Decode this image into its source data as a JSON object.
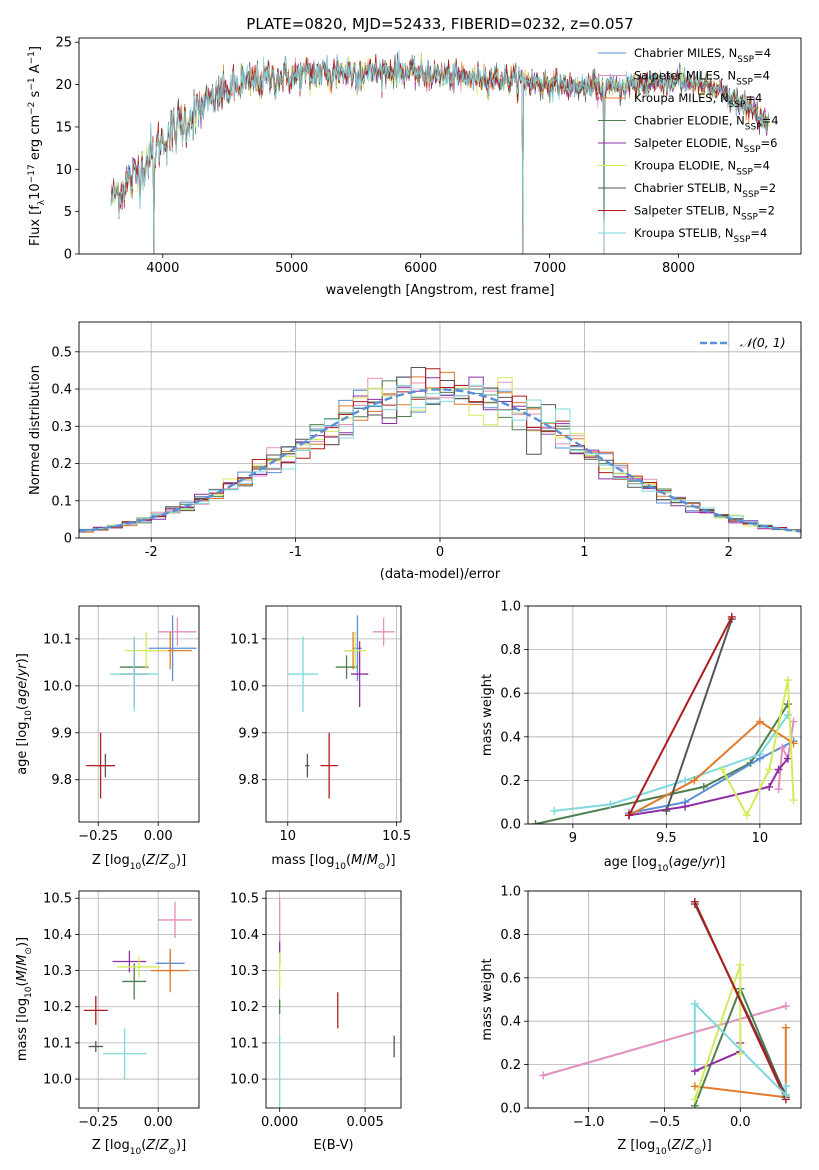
{
  "title": "PLATE=0820, MJD=52433, FIBERID=0232, z=0.057",
  "colors": {
    "Chabrier MILES": "#5b8fd6",
    "Salpeter MILES": "#e38fbf",
    "Kroupa MILES": "#e07b2e",
    "Chabrier ELODIE": "#4e7f4e",
    "Salpeter ELODIE": "#8e2fa3",
    "Kroupa ELODIE": "#d4ea5a",
    "Chabrier STELIB": "#555555",
    "Salpeter STELIB": "#b01c1c",
    "Kroupa STELIB": "#7fd9dd",
    "normal_fit": "#5b8fd6"
  },
  "chart_data": [
    {
      "type": "line",
      "title": "PLATE=0820, MJD=52433, FIBERID=0232, z=0.057",
      "xlabel": "wavelength [Angstrom, rest frame]",
      "ylabel": "Flux [f_λ 10^-17 erg cm^-2 s^-1 A^-1]",
      "xlim": [
        3350,
        8950
      ],
      "ylim": [
        0,
        25.5
      ],
      "xticks": [
        4000,
        5000,
        6000,
        7000,
        8000
      ],
      "yticks": [
        0,
        5,
        10,
        15,
        20,
        25
      ],
      "legend_position": "upper-right",
      "legend": [
        {
          "name": "Chabrier MILES",
          "sub": "SSP",
          "n": "4"
        },
        {
          "name": "Salpeter MILES",
          "sub": "SSP",
          "n": "4"
        },
        {
          "name": "Kroupa MILES",
          "sub": "SSP",
          "n": "4"
        },
        {
          "name": "Chabrier ELODIE",
          "sub": "SSP",
          "n": "4"
        },
        {
          "name": "Salpeter ELODIE",
          "sub": "SSP",
          "n": "6"
        },
        {
          "name": "Kroupa ELODIE",
          "sub": "SSP",
          "n": "4"
        },
        {
          "name": "Chabrier STELIB",
          "sub": "SSP",
          "n": "2"
        },
        {
          "name": "Salpeter STELIB",
          "sub": "SSP",
          "n": "2"
        },
        {
          "name": "Kroupa STELIB",
          "sub": "SSP",
          "n": "4"
        }
      ],
      "continuum": {
        "x": [
          3600,
          3800,
          4000,
          4200,
          4400,
          4600,
          4800,
          5000,
          5200,
          5400,
          5600,
          5800,
          6000,
          6200,
          6400,
          6600,
          6800,
          7000,
          7200,
          7400,
          7600,
          7800,
          8000,
          8200,
          8400,
          8600,
          8700
        ],
        "y": [
          6.5,
          9.5,
          13.5,
          16,
          18.5,
          20,
          20.8,
          21,
          21.3,
          21.5,
          21.5,
          21.6,
          21.3,
          21,
          20.8,
          20.7,
          20.5,
          20,
          19.7,
          19.6,
          19.8,
          20.3,
          20.5,
          19.9,
          18.5,
          16.5,
          15.8
        ]
      },
      "dips": [
        {
          "x": 3930,
          "y": 0
        },
        {
          "x": 6790,
          "y": 0
        },
        {
          "x": 7420,
          "y": 0
        }
      ]
    },
    {
      "type": "histogram",
      "xlabel": "(data-model)/error",
      "ylabel": "Normed distribution",
      "xlim": [
        -2.5,
        2.5
      ],
      "ylim": [
        0,
        0.58
      ],
      "xticks": [
        -2,
        -1,
        0,
        1,
        2
      ],
      "yticks": [
        0,
        0.1,
        0.2,
        0.3,
        0.4,
        0.5
      ],
      "legend": [
        "𝒩(0, 1)"
      ],
      "legend_position": "upper-right",
      "bin_edges_start": -2.5,
      "bin_width": 0.1,
      "series_names": [
        "Chabrier MILES",
        "Salpeter MILES",
        "Kroupa MILES",
        "Chabrier ELODIE",
        "Salpeter ELODIE",
        "Kroupa ELODIE",
        "Chabrier STELIB",
        "Salpeter STELIB",
        "Kroupa STELIB"
      ]
    },
    {
      "type": "errorbar",
      "xlabel": "Z [log10(Z/Z⊙)]",
      "ylabel": "age [log10(age/yr)]",
      "xlim": [
        -0.33,
        0.17
      ],
      "ylim": [
        9.71,
        10.17
      ],
      "xticks": [
        -0.25,
        0.0
      ],
      "xticklabels": [
        "−0.25",
        "0.00"
      ],
      "yticks": [
        9.8,
        9.9,
        10.0,
        10.1
      ],
      "points": [
        {
          "series": "Chabrier MILES",
          "x": 0.06,
          "y": 10.08,
          "xerr": 0.1,
          "yerr": 0.07
        },
        {
          "series": "Salpeter MILES",
          "x": 0.08,
          "y": 10.115,
          "xerr": 0.08,
          "yerr": 0.03
        },
        {
          "series": "Kroupa MILES",
          "x": 0.05,
          "y": 10.075,
          "xerr": 0.09,
          "yerr": 0.04
        },
        {
          "series": "Chabrier ELODIE",
          "x": -0.1,
          "y": 10.04,
          "xerr": 0.06,
          "yerr": 0.025
        },
        {
          "series": "Salpeter ELODIE",
          "x": -0.1,
          "y": 10.025,
          "xerr": 0.06,
          "yerr": 0.07
        },
        {
          "series": "Kroupa ELODIE",
          "x": -0.05,
          "y": 10.075,
          "xerr": 0.09,
          "yerr": 0.04
        },
        {
          "series": "Chabrier STELIB",
          "x": -0.22,
          "y": 9.83,
          "xerr": 0.03,
          "yerr": 0.025
        },
        {
          "series": "Salpeter STELIB",
          "x": -0.24,
          "y": 9.83,
          "xerr": 0.06,
          "yerr": 0.07
        },
        {
          "series": "Kroupa STELIB",
          "x": -0.1,
          "y": 10.025,
          "xerr": 0.1,
          "yerr": 0.08
        }
      ]
    },
    {
      "type": "errorbar",
      "xlabel": "mass [log10(M/M⊙)]",
      "ylabel": "",
      "xlim": [
        9.9,
        10.52
      ],
      "ylim": [
        9.71,
        10.17
      ],
      "xticks": [
        10.0,
        10.5
      ],
      "yticks": [
        9.8,
        9.9,
        10.0,
        10.1
      ],
      "points": [
        {
          "series": "Chabrier MILES",
          "x": 10.32,
          "y": 10.08,
          "xerr": 0.02,
          "yerr": 0.07
        },
        {
          "series": "Salpeter MILES",
          "x": 10.44,
          "y": 10.115,
          "xerr": 0.05,
          "yerr": 0.03
        },
        {
          "series": "Kroupa MILES",
          "x": 10.3,
          "y": 10.075,
          "xerr": 0.04,
          "yerr": 0.04
        },
        {
          "series": "Chabrier ELODIE",
          "x": 10.27,
          "y": 10.04,
          "xerr": 0.05,
          "yerr": 0.025
        },
        {
          "series": "Salpeter ELODIE",
          "x": 10.33,
          "y": 10.025,
          "xerr": 0.04,
          "yerr": 0.07
        },
        {
          "series": "Kroupa ELODIE",
          "x": 10.31,
          "y": 10.075,
          "xerr": 0.05,
          "yerr": 0.04
        },
        {
          "series": "Chabrier STELIB",
          "x": 10.09,
          "y": 9.83,
          "xerr": 0.01,
          "yerr": 0.025
        },
        {
          "series": "Salpeter STELIB",
          "x": 10.19,
          "y": 9.83,
          "xerr": 0.04,
          "yerr": 0.07
        },
        {
          "series": "Kroupa STELIB",
          "x": 10.07,
          "y": 10.025,
          "xerr": 0.07,
          "yerr": 0.08
        }
      ]
    },
    {
      "type": "line",
      "xlabel": "age [log10(age/yr)]",
      "ylabel": "mass weight",
      "xlim": [
        8.76,
        10.22
      ],
      "ylim": [
        0,
        1.0
      ],
      "xticks": [
        9.0,
        9.5,
        10.0
      ],
      "yticks": [
        0.0,
        0.2,
        0.4,
        0.6,
        0.8,
        1.0
      ],
      "series": [
        {
          "name": "Chabrier ELODIE",
          "x": [
            8.8,
            9.7,
            9.95,
            10.15
          ],
          "y": [
            0.0,
            0.17,
            0.28,
            0.55
          ]
        },
        {
          "name": "Kroupa STELIB",
          "x": [
            8.9,
            9.2,
            9.6,
            10.0,
            10.15
          ],
          "y": [
            0.06,
            0.09,
            0.2,
            0.32,
            0.5
          ]
        },
        {
          "name": "Chabrier MILES",
          "x": [
            9.3,
            9.6,
            10.0,
            10.18
          ],
          "y": [
            0.05,
            0.1,
            0.3,
            0.38
          ]
        },
        {
          "name": "Salpeter MILES",
          "x": [
            10.1,
            10.12,
            10.15,
            10.18
          ],
          "y": [
            0.16,
            0.35,
            0.3,
            0.47
          ]
        },
        {
          "name": "Kroupa MILES",
          "x": [
            9.3,
            9.65,
            10.0,
            10.18
          ],
          "y": [
            0.04,
            0.2,
            0.47,
            0.37
          ]
        },
        {
          "name": "Salpeter ELODIE",
          "x": [
            9.3,
            9.6,
            10.05,
            10.1,
            10.15
          ],
          "y": [
            0.04,
            0.08,
            0.17,
            0.25,
            0.3
          ]
        },
        {
          "name": "Kroupa ELODIE",
          "x": [
            9.8,
            9.93,
            10.05,
            10.15,
            10.18
          ],
          "y": [
            0.25,
            0.04,
            0.25,
            0.66,
            0.11
          ]
        },
        {
          "name": "Chabrier STELIB",
          "x": [
            9.5,
            9.85
          ],
          "y": [
            0.06,
            0.94
          ]
        },
        {
          "name": "Salpeter STELIB",
          "x": [
            9.3,
            9.85
          ],
          "y": [
            0.04,
            0.95
          ]
        }
      ]
    },
    {
      "type": "errorbar",
      "xlabel": "Z [log10(Z/Z⊙)]",
      "ylabel": "mass [log10(M/M⊙)]",
      "xlim": [
        -0.33,
        0.17
      ],
      "ylim": [
        9.92,
        10.52
      ],
      "xticks": [
        -0.25,
        0.0
      ],
      "xticklabels": [
        "−0.25",
        "0.00"
      ],
      "yticks": [
        10.0,
        10.1,
        10.2,
        10.3,
        10.4,
        10.5
      ],
      "points": [
        {
          "series": "Chabrier MILES",
          "x": 0.05,
          "y": 10.32,
          "xerr": 0.06,
          "yerr": 0.03
        },
        {
          "series": "Salpeter MILES",
          "x": 0.07,
          "y": 10.44,
          "xerr": 0.07,
          "yerr": 0.05
        },
        {
          "series": "Kroupa MILES",
          "x": 0.05,
          "y": 10.3,
          "xerr": 0.08,
          "yerr": 0.06
        },
        {
          "series": "Chabrier ELODIE",
          "x": -0.1,
          "y": 10.27,
          "xerr": 0.05,
          "yerr": 0.05
        },
        {
          "series": "Salpeter ELODIE",
          "x": -0.12,
          "y": 10.325,
          "xerr": 0.07,
          "yerr": 0.03
        },
        {
          "series": "Kroupa ELODIE",
          "x": -0.08,
          "y": 10.31,
          "xerr": 0.09,
          "yerr": 0.03
        },
        {
          "series": "Chabrier STELIB",
          "x": -0.26,
          "y": 10.09,
          "xerr": 0.03,
          "yerr": 0.015
        },
        {
          "series": "Salpeter STELIB",
          "x": -0.26,
          "y": 10.19,
          "xerr": 0.05,
          "yerr": 0.04
        },
        {
          "series": "Kroupa STELIB",
          "x": -0.14,
          "y": 10.07,
          "xerr": 0.09,
          "yerr": 0.07
        }
      ]
    },
    {
      "type": "errorbar",
      "xlabel": "E(B-V)",
      "ylabel": "",
      "xlim": [
        -0.0008,
        0.0071
      ],
      "ylim": [
        9.92,
        10.52
      ],
      "xticks": [
        0.0,
        0.005
      ],
      "xticklabels": [
        "0.000",
        "0.005"
      ],
      "yticks": [
        10.0,
        10.1,
        10.2,
        10.3,
        10.4,
        10.5
      ],
      "points": [
        {
          "series": "Salpeter MILES",
          "x": 0.0,
          "y": 10.44,
          "xerr": 0,
          "yerr": 0.06
        },
        {
          "series": "Salpeter ELODIE",
          "x": 0.0,
          "y": 10.35,
          "xerr": 0,
          "yerr": 0.03
        },
        {
          "series": "Kroupa ELODIE",
          "x": 0.0,
          "y": 10.3,
          "xerr": 0,
          "yerr": 0.05
        },
        {
          "series": "Chabrier ELODIE",
          "x": 0.0,
          "y": 10.2,
          "xerr": 0,
          "yerr": 0.02
        },
        {
          "series": "Salpeter STELIB",
          "x": 0.0034,
          "y": 10.19,
          "xerr": 0,
          "yerr": 0.05
        },
        {
          "series": "Chabrier STELIB",
          "x": 0.0067,
          "y": 10.09,
          "xerr": 0,
          "yerr": 0.03
        },
        {
          "series": "Kroupa STELIB",
          "x": 0.0,
          "y": 10.02,
          "xerr": 0,
          "yerr": 0.1
        }
      ]
    },
    {
      "type": "line",
      "xlabel": "Z [log10(Z/Z⊙)]",
      "ylabel": "mass weight",
      "xlim": [
        -1.4,
        0.4
      ],
      "ylim": [
        0,
        1.0
      ],
      "xticks": [
        -1.0,
        -0.5,
        0.0
      ],
      "xticklabels": [
        "−1.0",
        "−0.5",
        "0.0"
      ],
      "yticks": [
        0.0,
        0.2,
        0.4,
        0.6,
        0.8,
        1.0
      ],
      "series": [
        {
          "name": "Salpeter MILES",
          "x": [
            -1.3,
            0.3
          ],
          "y": [
            0.15,
            0.47
          ]
        },
        {
          "name": "Kroupa MILES",
          "x": [
            -0.3,
            0.3,
            0.3
          ],
          "y": [
            0.1,
            0.05,
            0.37
          ]
        },
        {
          "name": "Chabrier ELODIE",
          "x": [
            -0.3,
            0.0,
            0.3,
            0.3
          ],
          "y": [
            0.01,
            0.55,
            0.05,
            0.1
          ]
        },
        {
          "name": "Salpeter ELODIE",
          "x": [
            -0.3,
            0.0,
            0.0
          ],
          "y": [
            0.17,
            0.26,
            0.3
          ]
        },
        {
          "name": "Kroupa ELODIE",
          "x": [
            -0.3,
            0.0,
            0.0
          ],
          "y": [
            0.04,
            0.66,
            0.25
          ]
        },
        {
          "name": "Chabrier STELIB",
          "x": [
            -0.3,
            0.3
          ],
          "y": [
            0.94,
            0.06
          ]
        },
        {
          "name": "Salpeter STELIB",
          "x": [
            -0.3,
            0.3
          ],
          "y": [
            0.95,
            0.04
          ]
        },
        {
          "name": "Kroupa STELIB",
          "x": [
            -0.3,
            -0.3,
            0.3,
            0.3
          ],
          "y": [
            0.2,
            0.48,
            0.06,
            0.1
          ]
        }
      ]
    }
  ]
}
